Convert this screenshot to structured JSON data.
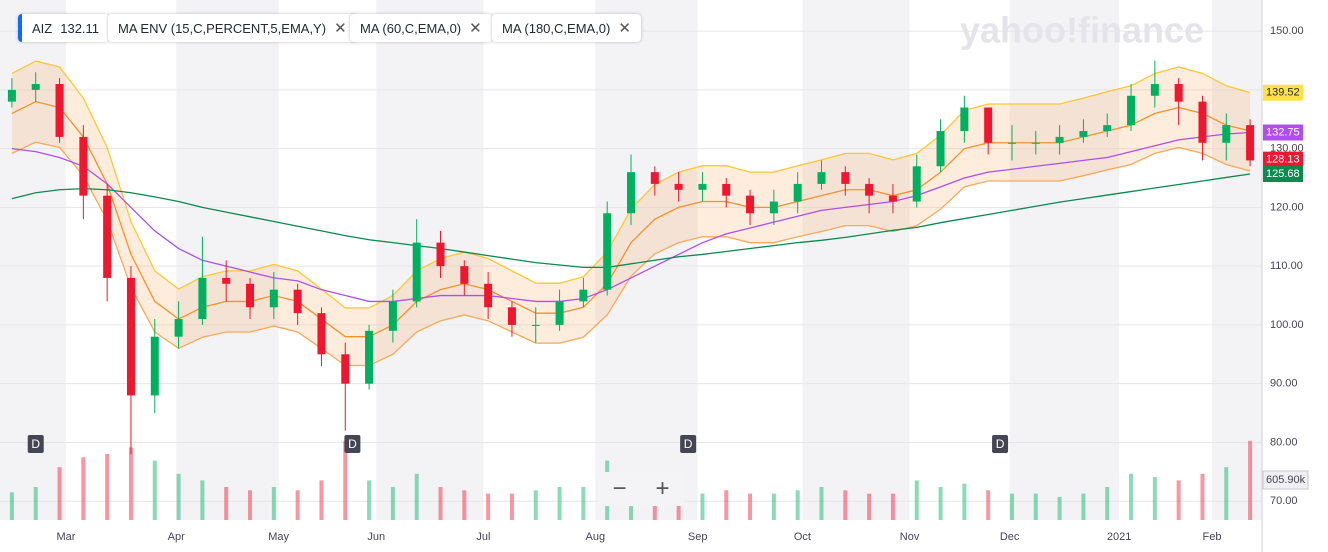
{
  "chart_data": {
    "type": "candlestick",
    "symbol": "AIZ",
    "quote": 132.11,
    "legend": [
      "MA ENV (15,C,PERCENT,5,EMA,Y)",
      "MA (60,C,EMA,0)",
      "MA (180,C,EMA,0)"
    ],
    "watermark": "yahoo!finance",
    "up_color": "#00b061",
    "down_color": "#f0162f",
    "xlim": [
      0,
      53
    ],
    "x": [
      0.5,
      1.5,
      2.5,
      3.5,
      4.5,
      5.5,
      6.5,
      7.5,
      8.5,
      9.5,
      10.5,
      11.5,
      12.5,
      13.5,
      14.5,
      15.5,
      16.5,
      17.5,
      18.5,
      19.5,
      20.5,
      21.5,
      22.5,
      23.5,
      24.5,
      25.5,
      26.5,
      27.5,
      28.5,
      29.5,
      30.5,
      31.5,
      32.5,
      33.5,
      34.5,
      35.5,
      36.5,
      37.5,
      38.5,
      39.5,
      40.5,
      41.5,
      42.5,
      43.5,
      44.5,
      45.5,
      46.5,
      47.5,
      48.5,
      49.5,
      50.5,
      51.5,
      52.5
    ],
    "xticks": [
      {
        "value": 2.77,
        "label": "Mar"
      },
      {
        "value": 7.4,
        "label": "Apr"
      },
      {
        "value": 11.7,
        "label": "May"
      },
      {
        "value": 15.8,
        "label": "Jun"
      },
      {
        "value": 20.3,
        "label": "Jul"
      },
      {
        "value": 25.0,
        "label": "Aug"
      },
      {
        "value": 29.3,
        "label": "Sep"
      },
      {
        "value": 33.7,
        "label": "Oct"
      },
      {
        "value": 38.2,
        "label": "Nov"
      },
      {
        "value": 42.4,
        "label": "Dec"
      },
      {
        "value": 47.0,
        "label": "2021"
      },
      {
        "value": 50.9,
        "label": "Feb"
      }
    ],
    "ylim": [
      66.8,
      155.3
    ],
    "yticks": [
      {
        "value": 70,
        "label": "70.00"
      },
      {
        "value": 80,
        "label": "80.00"
      },
      {
        "value": 90,
        "label": "90.00"
      },
      {
        "value": 100,
        "label": "100.00"
      },
      {
        "value": 110,
        "label": "110.00"
      },
      {
        "value": 120,
        "label": "120.00"
      },
      {
        "value": 130,
        "label": "130.00"
      },
      {
        "value": 140,
        "label": "140.00"
      },
      {
        "value": 150,
        "label": "150.00"
      }
    ],
    "grid": true,
    "open": [
      138,
      140,
      141,
      132,
      122,
      108,
      88,
      98,
      101,
      108,
      107,
      103,
      106,
      102,
      95,
      90,
      99,
      104,
      114,
      110,
      107,
      103,
      100,
      100,
      104,
      106,
      119,
      126,
      124,
      123,
      124,
      122,
      119,
      121,
      124,
      126,
      124,
      122,
      121,
      127,
      133,
      137,
      131,
      131,
      131,
      132,
      133,
      134,
      139,
      141,
      138,
      131,
      134
    ],
    "high": [
      142,
      143,
      142,
      134,
      124,
      110,
      101,
      104,
      115,
      111,
      108,
      109,
      107,
      103,
      97,
      100,
      106,
      118,
      116,
      111,
      109,
      104,
      103,
      106,
      108,
      121,
      129,
      127,
      126,
      126,
      125,
      123,
      123,
      126,
      128,
      127,
      125,
      124,
      129,
      135,
      139,
      137,
      134,
      133,
      134,
      135,
      136,
      141,
      145,
      142,
      139,
      136,
      135
    ],
    "low": [
      137,
      138,
      131,
      118,
      104,
      78,
      85,
      96,
      100,
      104,
      101,
      101,
      100,
      93,
      82,
      89,
      97,
      103,
      108,
      105,
      101,
      98,
      97,
      99,
      103,
      105,
      117,
      122,
      121,
      121,
      120,
      117,
      117,
      119,
      123,
      122,
      119,
      119,
      120,
      126,
      131,
      129,
      128,
      129,
      129,
      131,
      132,
      133,
      137,
      134,
      128,
      128,
      127
    ],
    "close": [
      140,
      141,
      132,
      122,
      108,
      88,
      98,
      101,
      108,
      107,
      103,
      106,
      102,
      95,
      90,
      99,
      104,
      114,
      110,
      107,
      103,
      100,
      100,
      104,
      106,
      119,
      126,
      124,
      123,
      124,
      122,
      119,
      121,
      124,
      126,
      124,
      122,
      121,
      127,
      133,
      137,
      131,
      131,
      131,
      132,
      133,
      134,
      139,
      141,
      138,
      131,
      134,
      128
    ],
    "series": [
      {
        "name": "MA ENV upper",
        "color": "#ffc832",
        "values": [
          142.8,
          144.9,
          143.9,
          138.6,
          130.2,
          117.6,
          109.2,
          106.1,
          108.2,
          109.2,
          109.2,
          110.3,
          109.2,
          106.1,
          102.9,
          102.9,
          105,
          109.2,
          111.3,
          112.4,
          111.3,
          109.2,
          107.1,
          107.1,
          108.2,
          112.4,
          119.7,
          123.9,
          126,
          127.1,
          127.1,
          126,
          126,
          127.1,
          128.1,
          129.2,
          129.2,
          128.1,
          129.2,
          132.3,
          136.5,
          137.6,
          137.6,
          137.6,
          137.6,
          138.6,
          139.7,
          140.7,
          142.8,
          143.9,
          142.8,
          140.7,
          139.52
        ]
      },
      {
        "name": "MA ENV center",
        "color": "#f7902b",
        "values": [
          136,
          138,
          137,
          132,
          124,
          112,
          104,
          101,
          103,
          104,
          104,
          105,
          104,
          101,
          98,
          98,
          100,
          104,
          106,
          107,
          106,
          104,
          102,
          102,
          103,
          107,
          114,
          118,
          120,
          121,
          121,
          120,
          120,
          121,
          122,
          123,
          123,
          122,
          123,
          126,
          130,
          131,
          131,
          131,
          131,
          132,
          133,
          134,
          136,
          137,
          136,
          134,
          133
        ]
      },
      {
        "name": "MA ENV lower",
        "color": "#f7a95a",
        "values": [
          129.2,
          131.1,
          130.2,
          125.4,
          117.8,
          106.4,
          98.8,
          96,
          97.9,
          98.8,
          98.8,
          99.8,
          98.8,
          96,
          93.1,
          93.1,
          95,
          98.8,
          100.7,
          101.7,
          100.7,
          98.8,
          96.9,
          96.9,
          97.9,
          101.7,
          108.3,
          112.1,
          114,
          115,
          115,
          114,
          114,
          115,
          115.9,
          116.9,
          116.9,
          115.9,
          116.9,
          119.7,
          123.5,
          124.5,
          124.5,
          124.5,
          124.5,
          125.4,
          126.4,
          127.3,
          129.2,
          130.2,
          129.2,
          127.3,
          126.2
        ]
      },
      {
        "name": "MA 60",
        "color": "#b04df0",
        "values": [
          130,
          129.5,
          128.5,
          127,
          124,
          120,
          116,
          113,
          111,
          110,
          109,
          108,
          107.5,
          106,
          105,
          104,
          104,
          104.5,
          105,
          105,
          105,
          104.5,
          104,
          104,
          104.5,
          106,
          108,
          110,
          112,
          114,
          115.5,
          116.5,
          117.5,
          118.5,
          119.5,
          120,
          120.5,
          121,
          122,
          123.5,
          125,
          126,
          126.5,
          127,
          127.5,
          128,
          128.5,
          129.5,
          130.5,
          131.5,
          132,
          132.5,
          132.75
        ]
      },
      {
        "name": "MA 180",
        "color": "#0b8a4f",
        "values": [
          121.5,
          122.5,
          123,
          123.2,
          123,
          122.5,
          121.8,
          121,
          120,
          119.2,
          118.4,
          117.6,
          116.8,
          116,
          115.2,
          114.5,
          114,
          113.5,
          113,
          112.4,
          111.8,
          111.2,
          110.6,
          110.2,
          109.8,
          109.8,
          110.4,
          111,
          111.6,
          112,
          112.5,
          113,
          113.5,
          114,
          114.4,
          114.9,
          115.5,
          116.1,
          116.6,
          117.4,
          118.1,
          118.8,
          119.5,
          120.2,
          120.9,
          121.5,
          122.1,
          122.7,
          123.3,
          123.9,
          124.5,
          125.1,
          125.68
        ]
      }
    ],
    "badges": [
      {
        "value": 139.52,
        "color": "#ffe14d"
      },
      {
        "value": 132.75,
        "color": "#b04df0"
      },
      {
        "value": 128.13,
        "color": "#f0162f"
      },
      {
        "value": 125.68,
        "color": "#0b8a4f"
      }
    ],
    "volume": [
      420,
      500,
      800,
      950,
      1000,
      1100,
      900,
      700,
      600,
      500,
      450,
      500,
      450,
      600,
      1200,
      600,
      500,
      700,
      500,
      450,
      400,
      400,
      450,
      500,
      500,
      900,
      700,
      500,
      400,
      400,
      450,
      400,
      400,
      450,
      500,
      450,
      400,
      400,
      600,
      500,
      550,
      450,
      400,
      400,
      350,
      400,
      500,
      700,
      650,
      600,
      700,
      800,
      1200
    ],
    "volume_lim": [
      0,
      1212
    ],
    "volume_ticks": [
      {
        "value": 605.9,
        "label": "605.90k"
      }
    ],
    "dividends": {
      "label": "D",
      "x": [
        1.5,
        14.8,
        28.9,
        42
      ]
    }
  }
}
